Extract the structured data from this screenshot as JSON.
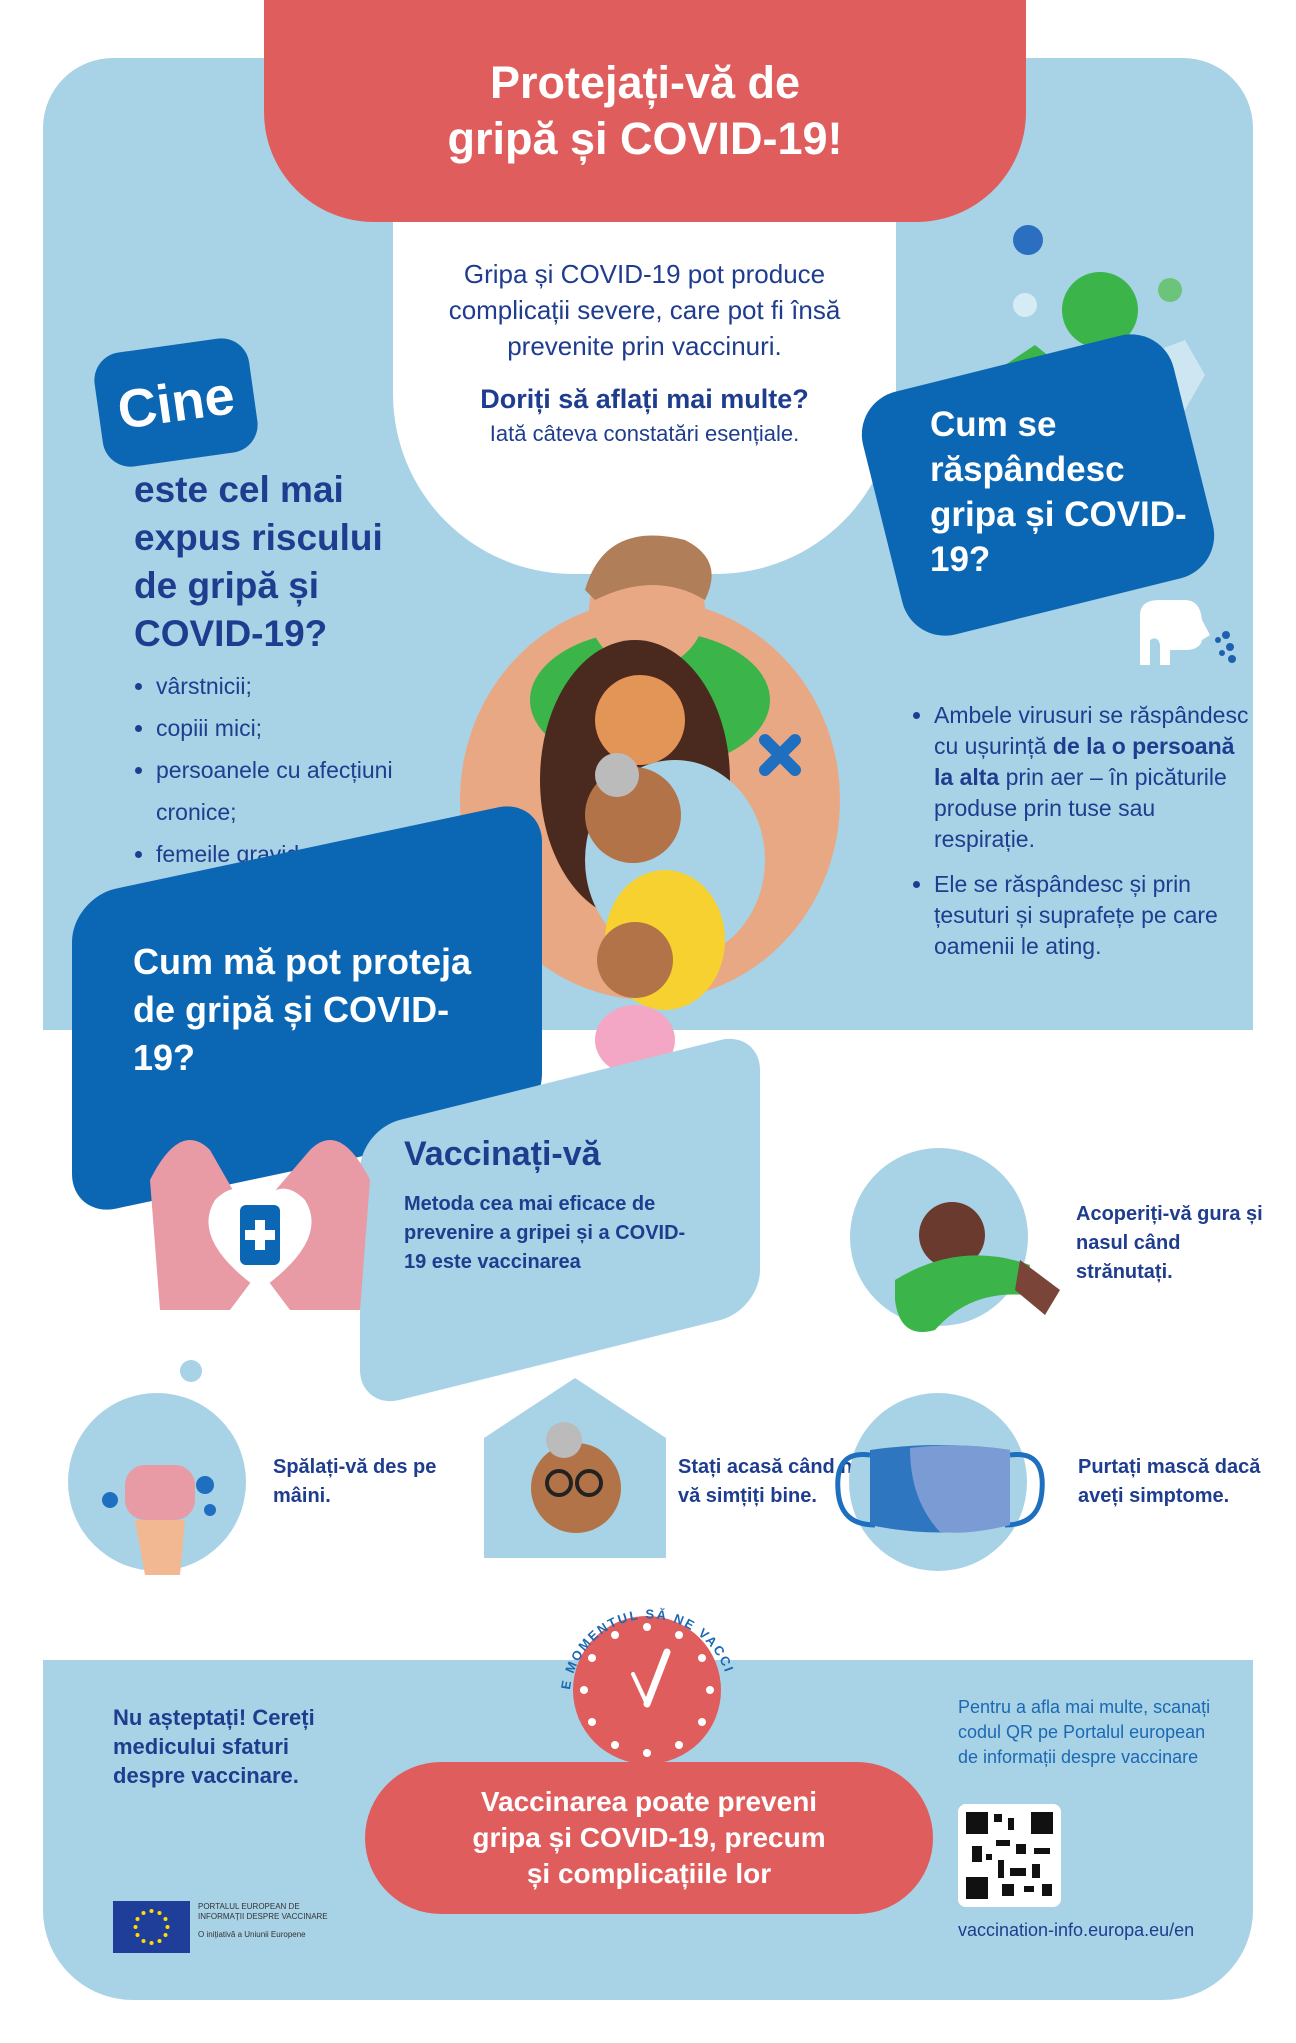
{
  "title": "Protejați-vă de gripă și COVID-19!",
  "intro": {
    "text": "Gripa și COVID-19 pot produce complicații severe, care pot fi însă prevenite prin vaccinuri.",
    "question": "Doriți să aflați mai multe?",
    "subtitle": "Iată câteva constatări esențiale."
  },
  "who": {
    "badge": "Cine",
    "heading": "este cel mai expus riscului de gripă și COVID-19?",
    "items": [
      "vârstnicii;",
      "copiii mici;",
      "persoanele cu afecțiuni cronice;",
      "femeile gravide."
    ]
  },
  "spread": {
    "heading": "Cum se răspândesc gripa și COVID-19?",
    "item1_pre": "Ambele virusuri se răspândesc cu ușurință ",
    "item1_bold": "de la o persoană la alta",
    "item1_post": " prin aer – în picăturile produse prin tuse sau respirație.",
    "item2": "Ele se răspândesc și prin țesuturi și suprafețe pe care oamenii le ating."
  },
  "protect": {
    "heading": "Cum mă pot proteja de gripă și COVID-19?"
  },
  "vaccinate": {
    "title": "Vaccinați-vă",
    "description": "Metoda cea mai eficace de prevenire a gripei și a COVID-19 este vaccinarea"
  },
  "tips": {
    "cover": "Acoperiți-vă gura și nasul când strănutați.",
    "wash": "Spălați-vă des pe mâini.",
    "stay_home": "Stați acasă când nu vă simțiți bine.",
    "mask": "Purtați mască dacă aveți simptome."
  },
  "clock_label": "E MOMENTUL SĂ NE VACCINĂM",
  "footer": {
    "wait": "Nu așteptați! Cereți medicului sfaturi despre vaccinare.",
    "pill": "Vaccinarea poate preveni gripa și COVID-19, precum și complicațiile lor",
    "more_info": "Pentru a afla mai multe, scanați codul QR pe Portalul european de informații despre vaccinare",
    "url": "vaccination-info.europa.eu/en",
    "portal_name": "PORTALUL EUROPEAN DE INFORMAȚII DESPRE VACCINARE",
    "portal_tagline": "O inițiativă a Uniunii Europene"
  },
  "colors": {
    "light_blue": "#a8d2e5",
    "dark_blue": "#0b66b3",
    "red": "#e05d5d",
    "navy_text": "#1f3d8f",
    "green": "#3bb54a"
  }
}
